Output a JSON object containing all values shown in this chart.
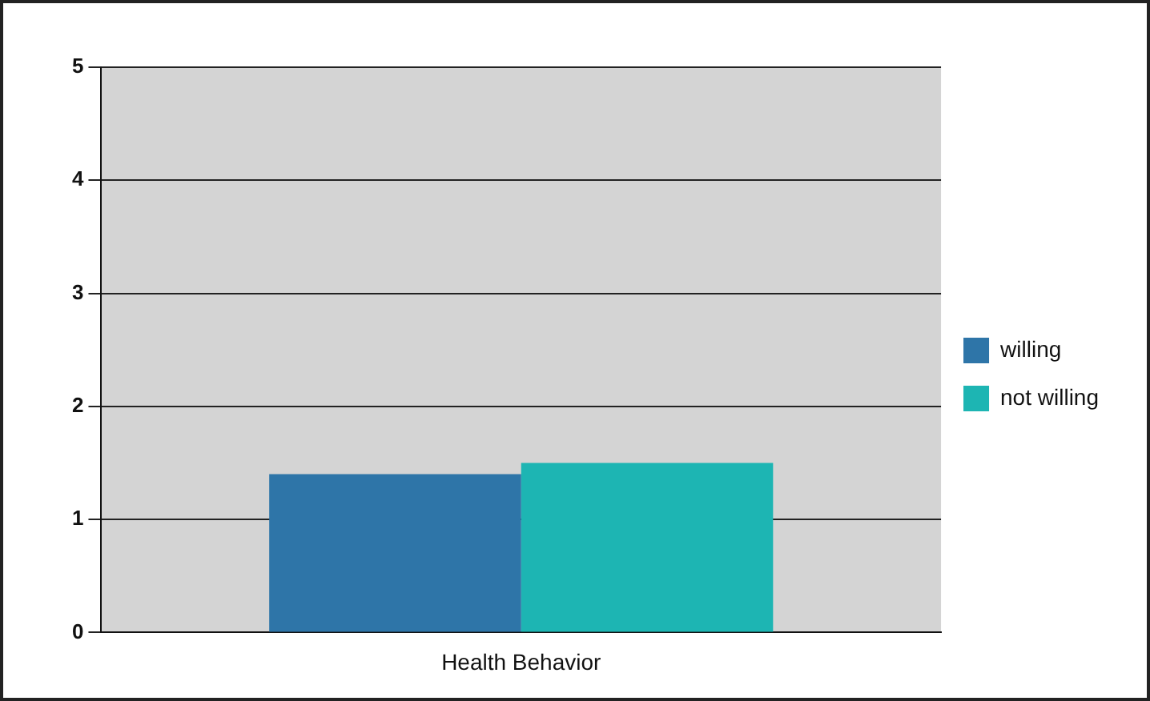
{
  "chart_data": {
    "type": "bar",
    "categories": [
      "Health Behavior"
    ],
    "series": [
      {
        "name": "willing",
        "color": "#2e75a8",
        "values": [
          1.4
        ]
      },
      {
        "name": "not willing",
        "color": "#1db5b3",
        "values": [
          1.5
        ]
      }
    ],
    "ylim": [
      0,
      5
    ],
    "yticks": [
      0,
      1,
      2,
      3,
      4,
      5
    ],
    "grid": "y",
    "legend": "right"
  }
}
